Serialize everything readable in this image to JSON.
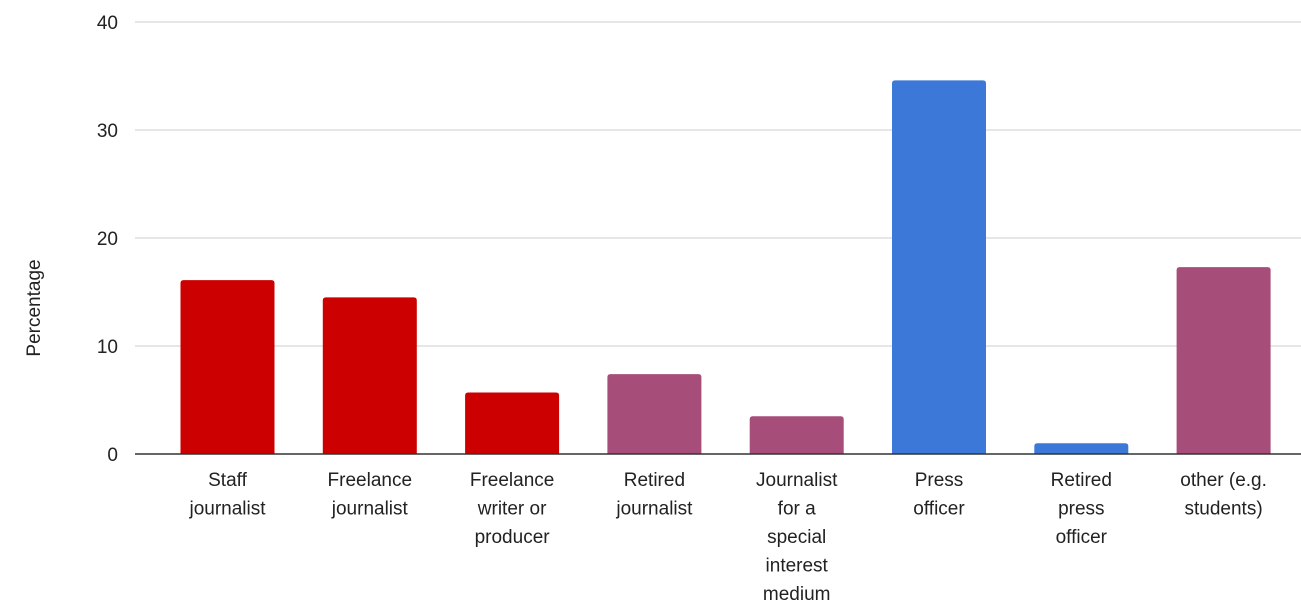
{
  "chart_data": {
    "type": "bar",
    "title": "",
    "xlabel": "",
    "ylabel": "Percentage",
    "ylim": [
      0,
      40
    ],
    "yticks": [
      0,
      10,
      20,
      30,
      40
    ],
    "grid": true,
    "categories": [
      [
        "Staff",
        "journalist"
      ],
      [
        "Freelance",
        "journalist"
      ],
      [
        "Freelance",
        "writer or",
        "producer"
      ],
      [
        "Retired",
        "journalist"
      ],
      [
        "Journalist",
        "for a",
        "special",
        "interest",
        "medium"
      ],
      [
        "Press",
        "officer"
      ],
      [
        "Retired",
        "press",
        "officer"
      ],
      [
        "other (e.g.",
        "students)"
      ]
    ],
    "values": [
      16.1,
      14.5,
      5.7,
      7.4,
      3.5,
      34.6,
      1.0,
      17.3
    ],
    "colors": [
      "#cc0000",
      "#cc0000",
      "#cc0000",
      "#a64d79",
      "#a64d79",
      "#3c78d8",
      "#3c78d8",
      "#a64d79"
    ]
  }
}
